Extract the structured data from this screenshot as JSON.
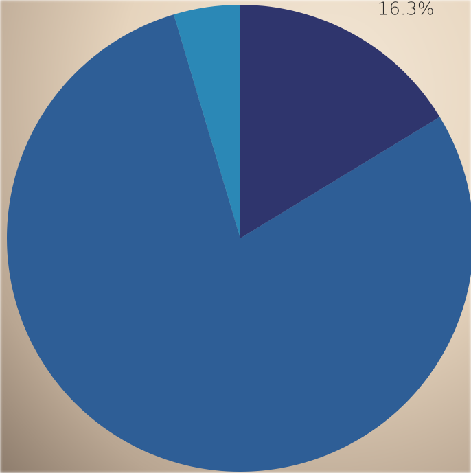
{
  "chart_data": {
    "type": "pie",
    "values": [
      16.3,
      79.1,
      4.6
    ],
    "value_labels": [
      "16.3%",
      null,
      null
    ],
    "colors": [
      "#2f356d",
      "#2e5e96",
      "#2b88b6"
    ],
    "start_angle": 0,
    "direction": "clockwise"
  }
}
